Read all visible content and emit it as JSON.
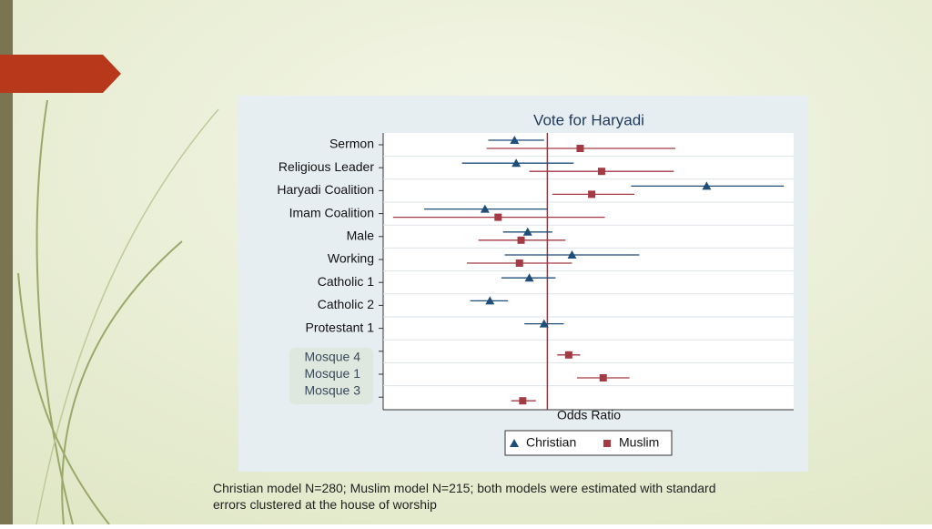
{
  "chart_data": {
    "type": "coefplot",
    "title": "Vote for Haryadi",
    "x_label": "Odds Ratio",
    "categories": [
      "Sermon",
      "Religious Leader",
      "Haryadi Coalition",
      "Imam Coalition",
      "Male",
      "Working",
      "Catholic 1",
      "Catholic 2",
      "Protestant 1",
      "Mosque 4",
      "Mosque 1",
      "Mosque 3"
    ],
    "xlim": [
      0,
      2.5
    ],
    "reference_line": 1,
    "reference_color": "#b0283c",
    "grid": true,
    "legend_position": "bottom",
    "series": [
      {
        "name": "Christian",
        "color": "#1f4e79",
        "marker": "triangle",
        "values": [
          0.8,
          0.81,
          1.97,
          0.62,
          0.88,
          1.15,
          0.89,
          0.65,
          0.98,
          null,
          null,
          null
        ],
        "lower": [
          0.64,
          0.48,
          1.51,
          0.25,
          0.73,
          0.74,
          0.72,
          0.53,
          0.86,
          null,
          null,
          null
        ],
        "upper": [
          0.98,
          1.16,
          2.44,
          1.0,
          1.03,
          1.56,
          1.05,
          0.76,
          1.1,
          null,
          null,
          null
        ]
      },
      {
        "name": "Muslim",
        "color": "#a33a44",
        "marker": "square",
        "values": [
          1.2,
          1.33,
          1.27,
          0.7,
          0.84,
          0.83,
          null,
          null,
          null,
          1.13,
          1.34,
          0.85
        ],
        "lower": [
          0.63,
          0.89,
          1.03,
          0.06,
          0.58,
          0.51,
          null,
          null,
          null,
          1.06,
          1.18,
          0.78
        ],
        "upper": [
          1.78,
          1.77,
          1.53,
          1.35,
          1.11,
          1.15,
          null,
          null,
          null,
          1.2,
          1.5,
          0.93
        ]
      }
    ]
  },
  "footnote": "Christian model N=280; Muslim model N=215; both models were estimated with standard errors clustered at the house of worship"
}
